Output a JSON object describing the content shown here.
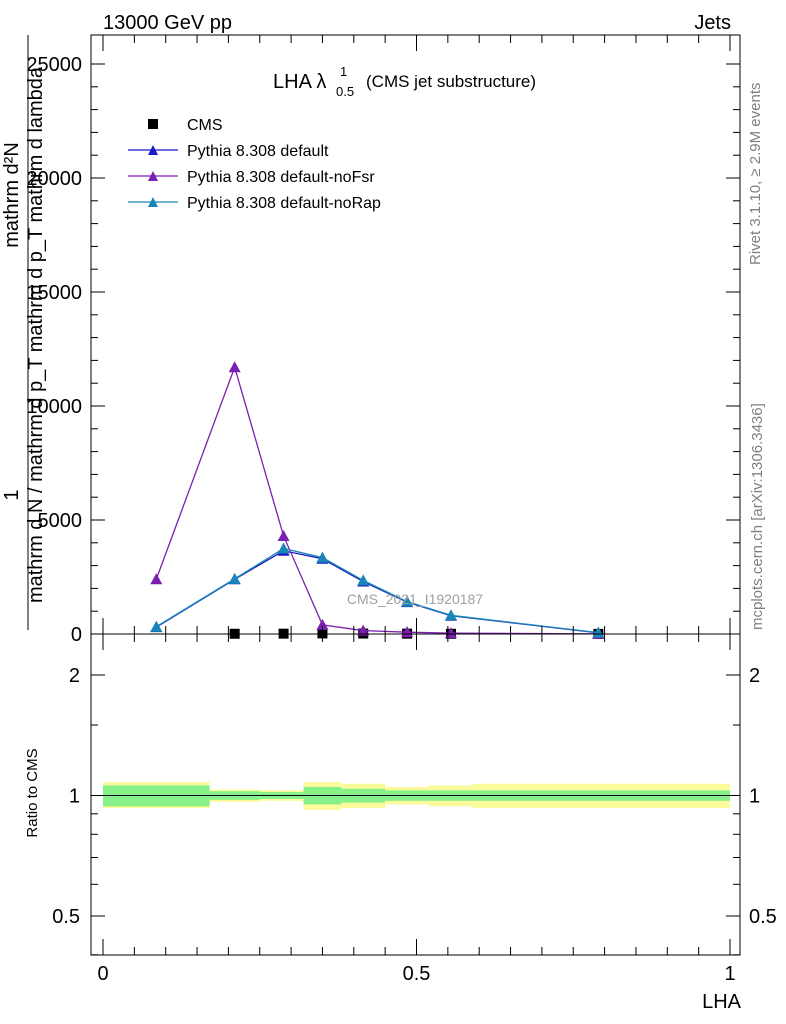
{
  "header": {
    "left": "13000 GeV pp",
    "right": "Jets"
  },
  "side_labels": {
    "rivet": "Rivet 3.1.10, ≥ 2.9M events",
    "mcplots": "mcplots.cern.ch [arXiv:1306.3436]"
  },
  "watermark": "CMS_2021_I1920187",
  "chart_data": [
    {
      "type": "line",
      "title_main": "LHA λ",
      "title_sup": "1",
      "title_sub": "0.5",
      "title_rest": "(CMS jet substructure)",
      "ylabel_top": "1",
      "ylabel_bottom": "mathrm d N / mathrm d p_T mathrm d p_T mathrm d lambda",
      "ylabel_numerator": "mathrm d²N",
      "ylim": [
        0,
        25000
      ],
      "yticks": [
        0,
        5000,
        10000,
        15000,
        20000,
        25000
      ],
      "ytick_labels": [
        "0",
        "5000",
        "10000",
        "15000",
        "20000",
        "25000"
      ],
      "xlim": [
        -0.02,
        1.0
      ],
      "legend_position": "top-left",
      "series": [
        {
          "name": "CMS",
          "marker": "square",
          "color": "#000000",
          "x": [
            0.21,
            0.288,
            0.35,
            0.415,
            0.485,
            0.555,
            0.79
          ],
          "y": [
            10,
            15,
            25,
            20,
            15,
            10,
            5
          ]
        },
        {
          "name": "Pythia 8.308 default",
          "marker": "triangle",
          "color": "#1a1ac8",
          "x": [
            0.085,
            0.21,
            0.288,
            0.35,
            0.415,
            0.485,
            0.555,
            0.79
          ],
          "y": [
            300,
            2400,
            3650,
            3300,
            2300,
            1400,
            800,
            50
          ]
        },
        {
          "name": "Pythia 8.308 default-noFsr",
          "marker": "triangle",
          "color": "#7b1fb0",
          "x": [
            0.085,
            0.21,
            0.288,
            0.35,
            0.415,
            0.485,
            0.555,
            0.79
          ],
          "y": [
            2400,
            11700,
            4300,
            400,
            150,
            80,
            40,
            5
          ]
        },
        {
          "name": "Pythia 8.308 default-noRap",
          "marker": "triangle",
          "color": "#1a86b8",
          "x": [
            0.085,
            0.21,
            0.288,
            0.35,
            0.415,
            0.485,
            0.555,
            0.79
          ],
          "y": [
            320,
            2420,
            3750,
            3350,
            2350,
            1420,
            820,
            60
          ]
        }
      ]
    },
    {
      "type": "line",
      "ylabel": "Ratio to CMS",
      "xlabel": "LHA",
      "ylim": [
        0.35,
        2.25
      ],
      "yticks": [
        0.5,
        1,
        2
      ],
      "ytick_labels": [
        "0.5",
        "1",
        "2"
      ],
      "xlim": [
        -0.02,
        1.0
      ],
      "xticks": [
        0,
        0.5,
        1
      ],
      "xtick_labels": [
        "0",
        "0.5",
        "1"
      ],
      "reference_line": 1,
      "band_inner_color": "#88f088",
      "band_outer_color": "#fbfb9b",
      "bands": [
        {
          "x0": 0.0,
          "x1": 0.17,
          "inner": [
            0.94,
            1.06
          ],
          "outer": [
            0.93,
            1.08
          ]
        },
        {
          "x0": 0.17,
          "x1": 0.25,
          "inner": [
            0.975,
            1.025
          ],
          "outer": [
            0.965,
            1.035
          ]
        },
        {
          "x0": 0.25,
          "x1": 0.32,
          "inner": [
            0.98,
            1.02
          ],
          "outer": [
            0.97,
            1.03
          ]
        },
        {
          "x0": 0.32,
          "x1": 0.38,
          "inner": [
            0.95,
            1.05
          ],
          "outer": [
            0.92,
            1.08
          ]
        },
        {
          "x0": 0.38,
          "x1": 0.45,
          "inner": [
            0.96,
            1.04
          ],
          "outer": [
            0.93,
            1.07
          ]
        },
        {
          "x0": 0.45,
          "x1": 0.52,
          "inner": [
            0.97,
            1.03
          ],
          "outer": [
            0.95,
            1.05
          ]
        },
        {
          "x0": 0.52,
          "x1": 0.59,
          "inner": [
            0.97,
            1.03
          ],
          "outer": [
            0.94,
            1.06
          ]
        },
        {
          "x0": 0.59,
          "x1": 1.0,
          "inner": [
            0.97,
            1.03
          ],
          "outer": [
            0.93,
            1.07
          ]
        }
      ]
    }
  ]
}
